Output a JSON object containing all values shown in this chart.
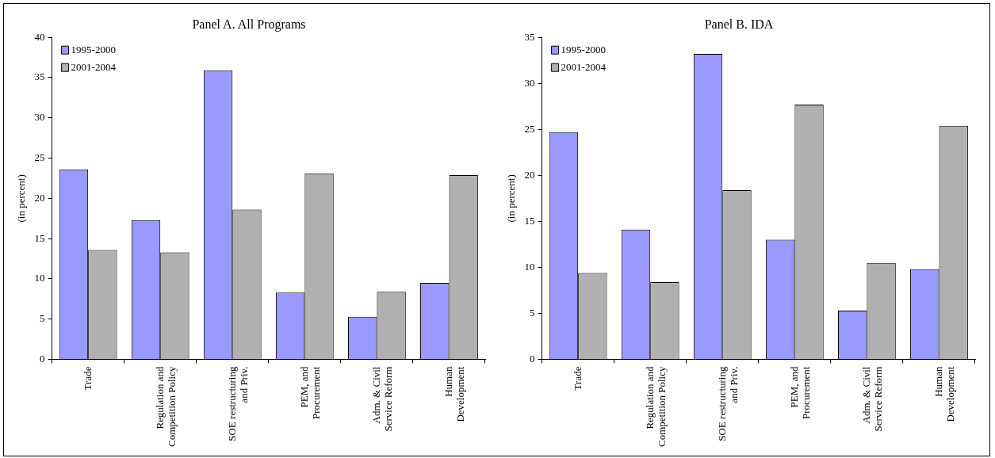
{
  "chart_data": [
    {
      "type": "bar",
      "title": "Panel A. All Programs",
      "ylabel": "(in percent)",
      "categories": [
        "Trade",
        "Regulation and Competition Policy",
        "SOE restructuring and Priv.",
        "PEM, and Procurement",
        "Adm. & Civil Service Reform",
        "Human Development"
      ],
      "series": [
        {
          "name": "1995-2000",
          "color": "#9999ff",
          "values": [
            23.6,
            17.3,
            35.9,
            8.3,
            5.3,
            9.5
          ]
        },
        {
          "name": "2001-2004",
          "color": "#b0b0b0",
          "values": [
            13.6,
            13.3,
            18.6,
            23.1,
            8.4,
            22.9
          ]
        }
      ],
      "ylim": [
        0,
        40
      ],
      "yticks": [
        0,
        5,
        10,
        15,
        20,
        25,
        30,
        35,
        40
      ],
      "grid": false,
      "legend": "top left"
    },
    {
      "type": "bar",
      "title": "Panel B. IDA",
      "ylabel": "(in percent)",
      "categories": [
        "Trade",
        "Regulation and Competition Policy",
        "SOE restructuring and Priv.",
        "PEM, and Procurement",
        "Adm. & Civil Service Reform",
        "Human Development"
      ],
      "series": [
        {
          "name": "1995-2000",
          "color": "#9999ff",
          "values": [
            24.7,
            14.1,
            33.2,
            13.0,
            5.3,
            9.8
          ]
        },
        {
          "name": "2001-2004",
          "color": "#b0b0b0",
          "values": [
            9.4,
            8.4,
            18.4,
            27.7,
            10.5,
            25.4
          ]
        }
      ],
      "ylim": [
        0,
        35
      ],
      "yticks": [
        0,
        5,
        10,
        15,
        20,
        25,
        30,
        35
      ],
      "grid": false,
      "legend": "top left"
    }
  ]
}
